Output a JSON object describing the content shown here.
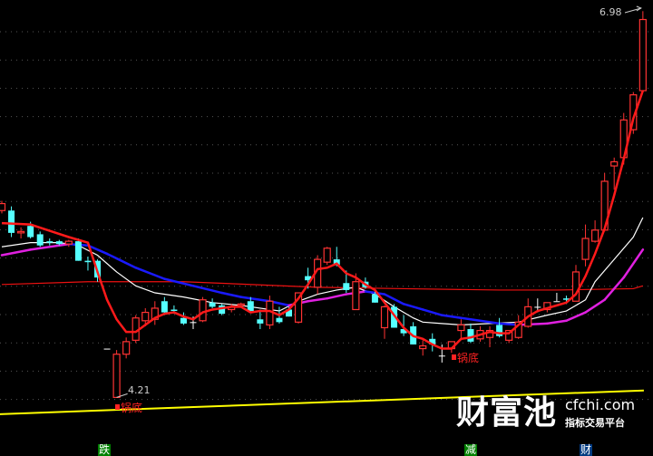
{
  "chart_data": {
    "type": "candlestick",
    "ylim": [
      3.79,
      7.06
    ],
    "grid": true,
    "colors": {
      "up": "#ff3333",
      "down": "#55ffff",
      "doji": "#ffffff",
      "fast_line": "#ff1a1a",
      "ma_white": "#ffffff",
      "ma_falling": "#1a1aff",
      "ma_rising": "#e020e0",
      "flat_line": "#ee1111",
      "support_line": "#ffff00",
      "background": "#000000"
    },
    "candles": [
      [
        5.55,
        5.62,
        5.53,
        5.6
      ],
      [
        5.55,
        5.58,
        5.36,
        5.39
      ],
      [
        5.39,
        5.43,
        5.35,
        5.4
      ],
      [
        5.44,
        5.47,
        5.35,
        5.36
      ],
      [
        5.38,
        5.4,
        5.29,
        5.3
      ],
      [
        5.33,
        5.35,
        5.3,
        5.32
      ],
      [
        5.33,
        5.34,
        5.3,
        5.31
      ],
      [
        5.31,
        5.34,
        5.29,
        5.33
      ],
      [
        5.33,
        5.35,
        5.19,
        5.19
      ],
      [
        5.19,
        5.22,
        5.12,
        5.18
      ],
      [
        5.19,
        5.2,
        5.04,
        5.07
      ],
      [
        4.56,
        4.56,
        4.56,
        4.56
      ],
      [
        4.21,
        4.55,
        4.21,
        4.52
      ],
      [
        4.52,
        4.64,
        4.49,
        4.61
      ],
      [
        4.62,
        4.8,
        4.6,
        4.78
      ],
      [
        4.76,
        4.85,
        4.72,
        4.82
      ],
      [
        4.77,
        4.9,
        4.73,
        4.85
      ],
      [
        4.9,
        4.93,
        4.8,
        4.82
      ],
      [
        4.84,
        4.87,
        4.81,
        4.83
      ],
      [
        4.78,
        4.82,
        4.73,
        4.74
      ],
      [
        4.75,
        4.79,
        4.7,
        4.75
      ],
      [
        4.76,
        4.93,
        4.75,
        4.91
      ],
      [
        4.89,
        4.92,
        4.85,
        4.86
      ],
      [
        4.87,
        4.88,
        4.8,
        4.81
      ],
      [
        4.84,
        4.88,
        4.82,
        4.86
      ],
      [
        4.87,
        4.89,
        4.86,
        4.88
      ],
      [
        4.9,
        4.93,
        4.82,
        4.83
      ],
      [
        4.77,
        4.84,
        4.7,
        4.74
      ],
      [
        4.73,
        4.94,
        4.7,
        4.9
      ],
      [
        4.78,
        4.86,
        4.74,
        4.75
      ],
      [
        4.84,
        4.86,
        4.79,
        4.79
      ],
      [
        4.75,
        4.96,
        4.74,
        4.96
      ],
      [
        5.08,
        5.14,
        4.99,
        5.05
      ],
      [
        5.0,
        5.23,
        4.95,
        5.2
      ],
      [
        5.18,
        5.29,
        5.16,
        5.28
      ],
      [
        5.2,
        5.29,
        5.15,
        5.16
      ],
      [
        5.03,
        5.12,
        4.96,
        4.98
      ],
      [
        4.84,
        5.1,
        4.84,
        5.04
      ],
      [
        5.04,
        5.07,
        4.99,
        5.0
      ],
      [
        4.95,
        4.97,
        4.89,
        4.89
      ],
      [
        4.71,
        4.87,
        4.63,
        4.86
      ],
      [
        4.86,
        4.88,
        4.71,
        4.71
      ],
      [
        4.7,
        4.8,
        4.65,
        4.67
      ],
      [
        4.72,
        4.75,
        4.59,
        4.59
      ],
      [
        4.56,
        4.62,
        4.51,
        4.58
      ],
      [
        4.63,
        4.67,
        4.54,
        4.59
      ],
      [
        4.51,
        4.59,
        4.46,
        4.51
      ],
      [
        4.56,
        4.61,
        4.53,
        4.61
      ],
      [
        4.69,
        4.77,
        4.62,
        4.73
      ],
      [
        4.7,
        4.74,
        4.6,
        4.61
      ],
      [
        4.63,
        4.72,
        4.61,
        4.69
      ],
      [
        4.64,
        4.72,
        4.57,
        4.69
      ],
      [
        4.73,
        4.78,
        4.64,
        4.65
      ],
      [
        4.62,
        4.69,
        4.6,
        4.69
      ],
      [
        4.64,
        4.8,
        4.63,
        4.75
      ],
      [
        4.72,
        4.92,
        4.71,
        4.86
      ],
      [
        4.86,
        4.92,
        4.82,
        4.86
      ],
      [
        4.84,
        4.89,
        4.82,
        4.89
      ],
      [
        4.9,
        4.96,
        4.9,
        4.9
      ],
      [
        4.92,
        4.94,
        4.88,
        4.91
      ],
      [
        4.9,
        5.16,
        4.9,
        5.11
      ],
      [
        5.2,
        5.45,
        5.15,
        5.35
      ],
      [
        5.33,
        5.48,
        5.32,
        5.41
      ],
      [
        5.41,
        5.82,
        5.4,
        5.76
      ],
      [
        5.87,
        5.93,
        5.7,
        5.9
      ],
      [
        5.93,
        6.25,
        5.88,
        6.2
      ],
      [
        6.13,
        6.4,
        6.1,
        6.38
      ],
      [
        6.41,
        6.98,
        6.4,
        6.92
      ]
    ],
    "candle_fields": [
      "open",
      "high",
      "low",
      "close"
    ],
    "lines": {
      "fast": [
        [
          1,
          5.46
        ],
        [
          4,
          5.45
        ],
        [
          8,
          5.36
        ],
        [
          10,
          5.32
        ],
        [
          11,
          5.11
        ],
        [
          12,
          4.91
        ],
        [
          13,
          4.77
        ],
        [
          14,
          4.68
        ],
        [
          15,
          4.68
        ],
        [
          16,
          4.73
        ],
        [
          17,
          4.78
        ],
        [
          18,
          4.81
        ],
        [
          19,
          4.82
        ],
        [
          20,
          4.79
        ],
        [
          21,
          4.77
        ],
        [
          22,
          4.82
        ],
        [
          23,
          4.84
        ],
        [
          24,
          4.85
        ],
        [
          25,
          4.86
        ],
        [
          26,
          4.86
        ],
        [
          27,
          4.82
        ],
        [
          28,
          4.83
        ],
        [
          29,
          4.83
        ],
        [
          30,
          4.8
        ],
        [
          31,
          4.84
        ],
        [
          32,
          4.92
        ],
        [
          33,
          5.02
        ],
        [
          34,
          5.13
        ],
        [
          35,
          5.14
        ],
        [
          36,
          5.17
        ],
        [
          37,
          5.1
        ],
        [
          38,
          5.07
        ],
        [
          39,
          5.02
        ],
        [
          40,
          4.98
        ],
        [
          41,
          4.89
        ],
        [
          42,
          4.8
        ],
        [
          43,
          4.71
        ],
        [
          44,
          4.65
        ],
        [
          45,
          4.63
        ],
        [
          46,
          4.59
        ],
        [
          47,
          4.56
        ],
        [
          48,
          4.56
        ],
        [
          49,
          4.63
        ],
        [
          50,
          4.64
        ],
        [
          51,
          4.66
        ],
        [
          52,
          4.68
        ],
        [
          53,
          4.67
        ],
        [
          54,
          4.67
        ],
        [
          55,
          4.73
        ],
        [
          56,
          4.79
        ],
        [
          57,
          4.83
        ],
        [
          58,
          4.85
        ],
        [
          59,
          4.87
        ],
        [
          60,
          4.89
        ],
        [
          61,
          4.95
        ],
        [
          62,
          5.08
        ],
        [
          63,
          5.24
        ],
        [
          64,
          5.42
        ],
        [
          65,
          5.66
        ],
        [
          66,
          5.92
        ],
        [
          67,
          6.21
        ],
        [
          68,
          6.41
        ]
      ],
      "white": [
        [
          1,
          5.29
        ],
        [
          4,
          5.32
        ],
        [
          7,
          5.32
        ],
        [
          9,
          5.3
        ],
        [
          11,
          5.23
        ],
        [
          13,
          5.11
        ],
        [
          15,
          5.01
        ],
        [
          17,
          4.96
        ],
        [
          20,
          4.93
        ],
        [
          23,
          4.89
        ],
        [
          26,
          4.87
        ],
        [
          28,
          4.85
        ],
        [
          30,
          4.83
        ],
        [
          32,
          4.9
        ],
        [
          34,
          4.95
        ],
        [
          36,
          4.98
        ],
        [
          38,
          5.0
        ],
        [
          40,
          4.95
        ],
        [
          42,
          4.86
        ],
        [
          44,
          4.78
        ],
        [
          45,
          4.75
        ],
        [
          47,
          4.74
        ],
        [
          49,
          4.73
        ],
        [
          52,
          4.74
        ],
        [
          55,
          4.75
        ],
        [
          58,
          4.8
        ],
        [
          60,
          4.83
        ],
        [
          62,
          4.91
        ],
        [
          63,
          5.04
        ],
        [
          65,
          5.2
        ],
        [
          67,
          5.36
        ],
        [
          68,
          5.5
        ]
      ],
      "trend_colored": [
        [
          1,
          5.23
        ],
        [
          4,
          5.27
        ],
        [
          7,
          5.3
        ],
        [
          8,
          5.31
        ],
        [
          10,
          5.3
        ],
        [
          12,
          5.24
        ],
        [
          15,
          5.14
        ],
        [
          18,
          5.06
        ],
        [
          21,
          5.01
        ],
        [
          24,
          4.96
        ],
        [
          26,
          4.93
        ],
        [
          29,
          4.9
        ],
        [
          31,
          4.87
        ],
        [
          33,
          4.9
        ],
        [
          35,
          4.92
        ],
        [
          37,
          4.95
        ],
        [
          39,
          4.97
        ],
        [
          40,
          4.96
        ],
        [
          41,
          4.95
        ],
        [
          43,
          4.88
        ],
        [
          45,
          4.84
        ],
        [
          47,
          4.8
        ],
        [
          50,
          4.77
        ],
        [
          53,
          4.74
        ],
        [
          55,
          4.73
        ],
        [
          58,
          4.74
        ],
        [
          60,
          4.76
        ],
        [
          62,
          4.82
        ],
        [
          64,
          4.91
        ],
        [
          66,
          5.07
        ],
        [
          68,
          5.27
        ]
      ],
      "flat": [
        [
          1,
          5.02
        ],
        [
          10,
          5.04
        ],
        [
          20,
          5.04
        ],
        [
          34,
          5.0
        ],
        [
          43,
          4.99
        ],
        [
          53,
          4.98
        ],
        [
          59,
          4.98
        ],
        [
          67,
          4.99
        ],
        [
          68,
          5.01
        ]
      ],
      "support": [
        [
          0.8,
          4.09
        ],
        [
          68.1,
          4.26
        ]
      ]
    },
    "annotations": {
      "high_label": "6.98",
      "low_label": "4.21",
      "bottom_label_1": "锅底",
      "bottom_label_2": "锅底"
    },
    "signals": [
      {
        "text": "跌",
        "color": "#008000"
      },
      {
        "text": "减",
        "color": "#008000"
      },
      {
        "text": "财",
        "color": "#003a80"
      }
    ]
  },
  "watermark": {
    "brand": "财富池",
    "url": "cfchi.com",
    "tagline": "指标交易平台"
  }
}
